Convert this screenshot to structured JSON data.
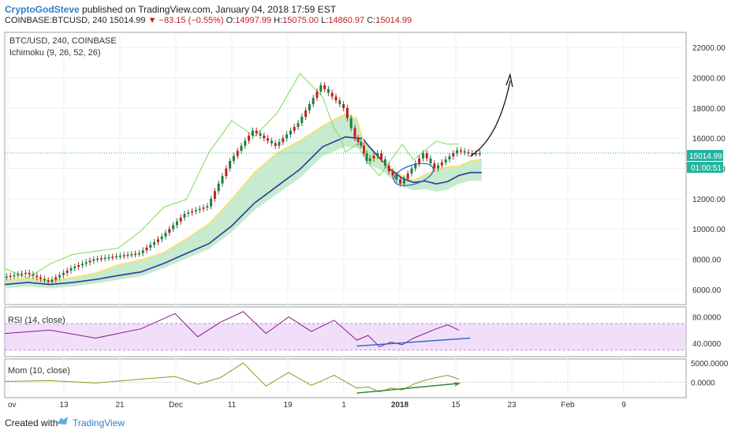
{
  "header": {
    "author": "CryptoGodSteve",
    "published": "published on TradingView.com, January 04, 2018 17:59 EST",
    "symbol": "COINBASE:BTCUSD, 240",
    "last": "15014.99",
    "change": "▼ −83.15 (−0.55%)",
    "o_label": "O:",
    "o_value": "14997.99",
    "h_label": "H:",
    "h_value": "15075.00",
    "l_label": "L:",
    "l_value": "14860.97",
    "c_label": "C:",
    "c_value": "15014.99"
  },
  "legend": {
    "symbol": "BTC/USD, 240, COINBASE",
    "indicator": "Ichimoku (9, 26, 52, 26)",
    "rsi": "RSI (14, close)",
    "mom": "Mom (10, close)"
  },
  "price_tag": {
    "value": "15014.99",
    "timer": "01:00:51"
  },
  "footer": {
    "created": "Created with",
    "brand": "TradingView"
  },
  "colors": {
    "candle_up": "#1f7f3f",
    "candle_down": "#c0201f",
    "base_line": "#2d3a9e",
    "conversion": "#ffe066",
    "lagging": "#7ddc5a",
    "cloud_bull": "#b8e6c2",
    "cloud_bear": "#ffc7c0",
    "rsi": "#8b1c8b",
    "rsi_band": "#e8c8f5",
    "mom": "#8b9a1e",
    "trend_blue": "#2c5fcf",
    "trend_green": "#2a8a3a",
    "last_line": "#27b3a0"
  },
  "chart_data": [
    {
      "type": "line",
      "title": "BTC/USD, 240, COINBASE",
      "x_ticks": [
        "ov",
        "13",
        "21",
        "Dec",
        "11",
        "19",
        "1",
        "2018",
        "15",
        "23",
        "Feb",
        "9"
      ],
      "ylim": [
        5000,
        23000
      ],
      "y_ticks": [
        6000,
        8000,
        10000,
        12000,
        14000,
        16000,
        18000,
        20000,
        22000
      ],
      "series": [
        {
          "name": "BTC/USD",
          "x": [
            0,
            4,
            8,
            12,
            16,
            20,
            24,
            28,
            32,
            36,
            40,
            44,
            48,
            52,
            56,
            60,
            62,
            63,
            64,
            66,
            68,
            70,
            72,
            74,
            76,
            78,
            80,
            82,
            84
          ],
          "values": [
            6800,
            7100,
            6500,
            7400,
            8000,
            8200,
            8400,
            9500,
            11000,
            11500,
            14500,
            16500,
            15500,
            17000,
            19500,
            18000,
            16000,
            15500,
            14500,
            15000,
            13800,
            13000,
            14000,
            15000,
            14000,
            14600,
            15200,
            15000,
            15014.99
          ]
        }
      ],
      "annotations": [
        "15014.99",
        "01:00:51"
      ]
    },
    {
      "type": "line",
      "title": "RSI (14, close)",
      "ylim": [
        20,
        95
      ],
      "y_ticks": [
        40,
        80
      ],
      "band": [
        30,
        70
      ],
      "series": [
        {
          "name": "RSI (14, close)",
          "x": [
            0,
            8,
            16,
            24,
            30,
            34,
            38,
            42,
            46,
            50,
            54,
            58,
            62,
            64,
            66,
            68,
            70,
            72,
            74,
            76,
            78,
            80
          ],
          "values": [
            55,
            60,
            48,
            62,
            85,
            50,
            72,
            88,
            55,
            80,
            58,
            75,
            45,
            52,
            35,
            42,
            38,
            48,
            55,
            62,
            68,
            60
          ]
        }
      ]
    },
    {
      "type": "line",
      "title": "Mom (10, close)",
      "ylim": [
        -4000,
        6000
      ],
      "y_ticks": [
        0,
        5000
      ],
      "series": [
        {
          "name": "Mom (10, close)",
          "x": [
            0,
            8,
            16,
            24,
            30,
            34,
            38,
            42,
            46,
            50,
            54,
            58,
            62,
            64,
            66,
            68,
            70,
            72,
            74,
            76,
            78,
            80
          ],
          "values": [
            200,
            400,
            -200,
            800,
            1500,
            -500,
            1200,
            5000,
            -1000,
            2500,
            -800,
            1800,
            -1500,
            -1200,
            -2500,
            -1500,
            -2000,
            -500,
            500,
            1200,
            1800,
            800
          ]
        }
      ]
    }
  ]
}
